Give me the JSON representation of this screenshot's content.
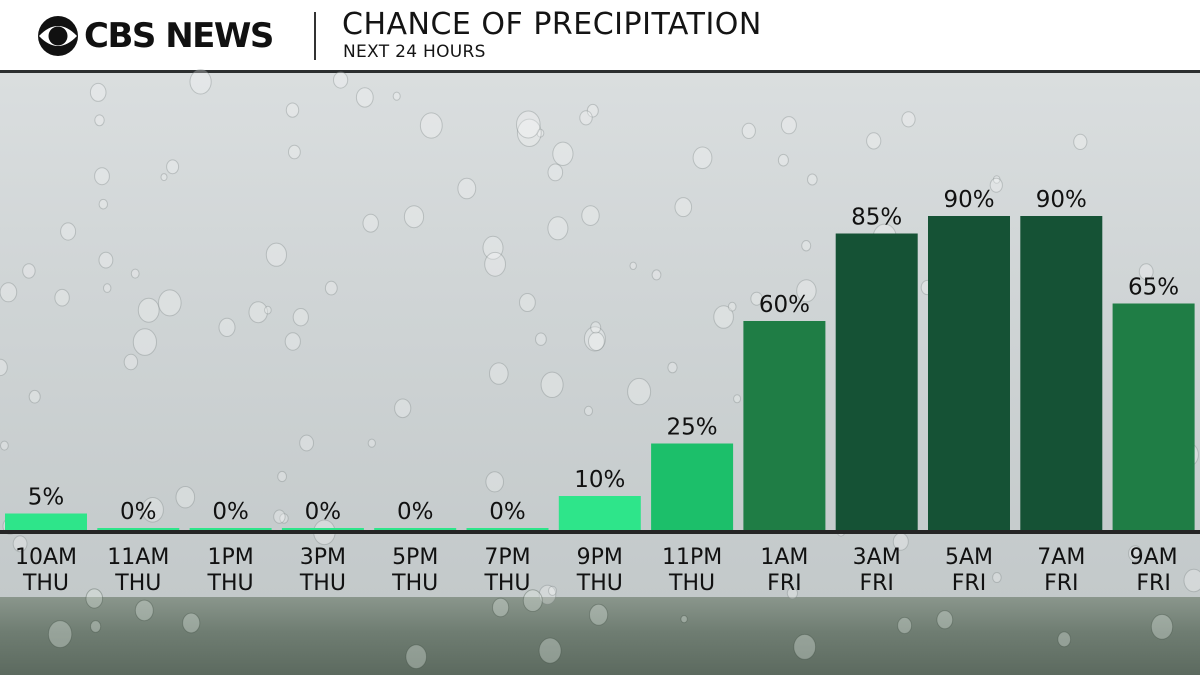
{
  "header": {
    "logo_text": "CBS NEWS",
    "title": "CHANCE OF PRECIPITATION",
    "subtitle": "NEXT 24 HOURS"
  },
  "colors": {
    "low": "#2ee58a",
    "mid": "#1cbf6a",
    "high": "#1f7d45",
    "very_high": "#155235"
  },
  "chart_data": {
    "type": "bar",
    "title": "CHANCE OF PRECIPITATION",
    "subtitle": "NEXT 24 HOURS",
    "categories": [
      [
        "10AM",
        "THU"
      ],
      [
        "11AM",
        "THU"
      ],
      [
        "1PM",
        "THU"
      ],
      [
        "3PM",
        "THU"
      ],
      [
        "5PM",
        "THU"
      ],
      [
        "7PM",
        "THU"
      ],
      [
        "9PM",
        "THU"
      ],
      [
        "11PM",
        "THU"
      ],
      [
        "1AM",
        "FRI"
      ],
      [
        "3AM",
        "FRI"
      ],
      [
        "5AM",
        "FRI"
      ],
      [
        "7AM",
        "FRI"
      ],
      [
        "9AM",
        "FRI"
      ]
    ],
    "values": [
      5,
      0,
      0,
      0,
      0,
      0,
      10,
      25,
      60,
      85,
      90,
      90,
      65
    ],
    "labels": [
      "5%",
      "0%",
      "0%",
      "0%",
      "0%",
      "0%",
      "10%",
      "25%",
      "60%",
      "85%",
      "90%",
      "90%",
      "65%"
    ],
    "unit": "%",
    "ylim": [
      0,
      100
    ],
    "grid": false,
    "legend": "none"
  }
}
